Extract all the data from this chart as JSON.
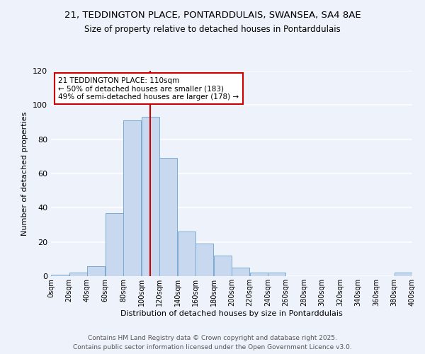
{
  "title_line1": "21, TEDDINGTON PLACE, PONTARDDULAIS, SWANSEA, SA4 8AE",
  "title_line2": "Size of property relative to detached houses in Pontarddulais",
  "xlabel": "Distribution of detached houses by size in Pontarddulais",
  "ylabel": "Number of detached properties",
  "bar_edges": [
    0,
    20,
    40,
    60,
    80,
    100,
    120,
    140,
    160,
    180,
    200,
    220,
    240,
    260,
    280,
    300,
    320,
    340,
    360,
    380,
    400
  ],
  "bar_heights": [
    1,
    2,
    6,
    37,
    91,
    93,
    69,
    26,
    19,
    12,
    5,
    2,
    2,
    0,
    0,
    0,
    0,
    0,
    0,
    2
  ],
  "bar_facecolor": "#c8d9ef",
  "bar_edgecolor": "#7aaad4",
  "vline_x": 110,
  "vline_color": "#cc0000",
  "ylim": [
    0,
    120
  ],
  "yticks": [
    0,
    20,
    40,
    60,
    80,
    100,
    120
  ],
  "xtick_labels": [
    "0sqm",
    "20sqm",
    "40sqm",
    "60sqm",
    "80sqm",
    "100sqm",
    "120sqm",
    "140sqm",
    "160sqm",
    "180sqm",
    "200sqm",
    "220sqm",
    "240sqm",
    "260sqm",
    "280sqm",
    "300sqm",
    "320sqm",
    "340sqm",
    "360sqm",
    "380sqm",
    "400sqm"
  ],
  "annotation_title": "21 TEDDINGTON PLACE: 110sqm",
  "annotation_line2": "← 50% of detached houses are smaller (183)",
  "annotation_line3": "49% of semi-detached houses are larger (178) →",
  "annotation_box_color": "#cc0000",
  "annotation_facecolor": "white",
  "bg_color": "#eef2fa",
  "grid_color": "white",
  "footer_line1": "Contains HM Land Registry data © Crown copyright and database right 2025.",
  "footer_line2": "Contains public sector information licensed under the Open Government Licence v3.0."
}
